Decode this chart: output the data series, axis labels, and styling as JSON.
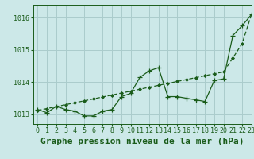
{
  "title": "Graphe pression niveau de la mer (hPa)",
  "background_color": "#cce8e8",
  "plot_bg_color": "#cce8e8",
  "grid_color": "#aacccc",
  "line_color": "#1a5c1a",
  "xlim": [
    -0.5,
    23
  ],
  "ylim": [
    1012.7,
    1016.4
  ],
  "yticks": [
    1013,
    1014,
    1015,
    1016
  ],
  "xtick_labels": [
    "0",
    "1",
    "2",
    "3",
    "4",
    "5",
    "6",
    "7",
    "8",
    "9",
    "10",
    "11",
    "12",
    "13",
    "14",
    "15",
    "16",
    "17",
    "18",
    "19",
    "20",
    "21",
    "22",
    "23"
  ],
  "series1_x": [
    0,
    1,
    2,
    3,
    4,
    5,
    6,
    7,
    8,
    9,
    10,
    11,
    12,
    13,
    14,
    15,
    16,
    17,
    18,
    19,
    20,
    21,
    22,
    23
  ],
  "series1_y": [
    1013.15,
    1013.05,
    1013.25,
    1013.15,
    1013.1,
    1012.95,
    1012.95,
    1013.1,
    1013.15,
    1013.55,
    1013.65,
    1014.15,
    1014.35,
    1014.45,
    1013.55,
    1013.55,
    1013.5,
    1013.45,
    1013.4,
    1014.05,
    1014.1,
    1015.45,
    1015.75,
    1016.1
  ],
  "series2_x": [
    0,
    1,
    2,
    3,
    4,
    5,
    6,
    7,
    8,
    9,
    10,
    11,
    12,
    13,
    14,
    15,
    16,
    17,
    18,
    19,
    20,
    21,
    22,
    23
  ],
  "series2_y": [
    1013.12,
    1013.18,
    1013.24,
    1013.3,
    1013.36,
    1013.42,
    1013.48,
    1013.54,
    1013.6,
    1013.66,
    1013.72,
    1013.78,
    1013.84,
    1013.9,
    1013.96,
    1014.02,
    1014.08,
    1014.14,
    1014.2,
    1014.26,
    1014.32,
    1014.75,
    1015.2,
    1016.1
  ],
  "title_fontsize": 8,
  "tick_fontsize": 6
}
